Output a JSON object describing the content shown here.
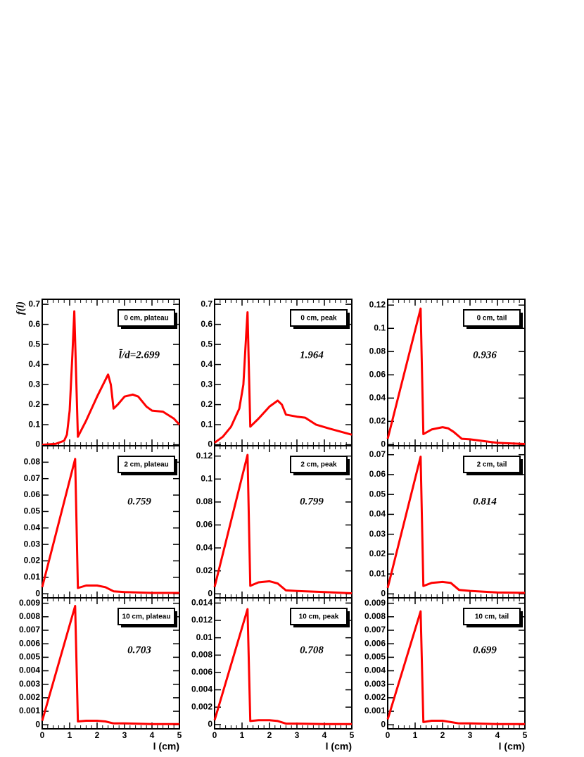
{
  "chart_data": [
    {
      "type": "line",
      "label": "0 cm, plateau",
      "annotation": "l̄/d=2.699",
      "ylabel": "f(l)",
      "color": "#ff0000",
      "x": [
        0,
        0.5,
        0.8,
        0.9,
        1.0,
        1.1,
        1.17,
        1.3,
        1.6,
        2.0,
        2.4,
        2.5,
        2.6,
        2.75,
        3.0,
        3.3,
        3.5,
        3.8,
        4.0,
        4.4,
        4.8,
        5.0
      ],
      "values": [
        0,
        0.005,
        0.02,
        0.05,
        0.17,
        0.45,
        0.665,
        0.04,
        0.12,
        0.24,
        0.35,
        0.3,
        0.18,
        0.2,
        0.24,
        0.25,
        0.24,
        0.19,
        0.17,
        0.165,
        0.13,
        0.1
      ],
      "xlim": [
        0,
        5
      ],
      "xticks": [
        0,
        1,
        2,
        3,
        4,
        5
      ],
      "ylim": [
        -0.005,
        0.725
      ],
      "yticks": [
        0,
        0.1,
        0.2,
        0.3,
        0.4,
        0.5,
        0.6,
        0.7
      ]
    },
    {
      "type": "line",
      "label": "0 cm, peak",
      "annotation": "1.964",
      "color": "#ff0000",
      "x": [
        0,
        0.3,
        0.6,
        0.9,
        1.05,
        1.15,
        1.2,
        1.3,
        1.6,
        2.0,
        2.3,
        2.45,
        2.6,
        3.0,
        3.3,
        3.7,
        4.2,
        5.0
      ],
      "values": [
        0.01,
        0.04,
        0.09,
        0.18,
        0.3,
        0.55,
        0.66,
        0.09,
        0.13,
        0.19,
        0.22,
        0.2,
        0.15,
        0.14,
        0.135,
        0.1,
        0.08,
        0.05
      ],
      "xlim": [
        0,
        5
      ],
      "xticks": [
        0,
        1,
        2,
        3,
        4,
        5
      ],
      "ylim": [
        -0.005,
        0.725
      ],
      "yticks": [
        0,
        0.1,
        0.2,
        0.3,
        0.4,
        0.5,
        0.6,
        0.7
      ]
    },
    {
      "type": "line",
      "label": "0 cm, tail",
      "annotation": "0.936",
      "color": "#ff0000",
      "x": [
        0,
        1.2,
        1.3,
        1.6,
        2.0,
        2.2,
        2.4,
        2.7,
        3.0,
        3.5,
        4.0,
        5.0
      ],
      "values": [
        0.005,
        0.117,
        0.009,
        0.013,
        0.015,
        0.014,
        0.011,
        0.005,
        0.0045,
        0.003,
        0.0015,
        0.0005
      ],
      "xlim": [
        0,
        5
      ],
      "xticks": [
        0,
        1,
        2,
        3,
        4,
        5
      ],
      "ylim": [
        -0.001,
        0.125
      ],
      "yticks": [
        0,
        0.02,
        0.04,
        0.06,
        0.08,
        0.1,
        0.12
      ]
    },
    {
      "type": "line",
      "label": "2 cm, plateau",
      "annotation": "0.759",
      "color": "#ff0000",
      "x": [
        0,
        1.2,
        1.3,
        1.6,
        2.0,
        2.3,
        2.6,
        3.0,
        4.0,
        5.0
      ],
      "values": [
        0.004,
        0.082,
        0.0035,
        0.005,
        0.005,
        0.004,
        0.0015,
        0.001,
        0.0005,
        0.0005
      ],
      "xlim": [
        0,
        5
      ],
      "xticks": [
        0,
        1,
        2,
        3,
        4,
        5
      ],
      "ylim": [
        -0.0025,
        0.09
      ],
      "yticks": [
        0,
        0.01,
        0.02,
        0.03,
        0.04,
        0.05,
        0.06,
        0.07,
        0.08
      ]
    },
    {
      "type": "line",
      "label": "2 cm, peak",
      "annotation": "0.799",
      "color": "#ff0000",
      "x": [
        0,
        1.2,
        1.3,
        1.6,
        2.0,
        2.3,
        2.6,
        3.0,
        4.0,
        5.0
      ],
      "values": [
        0.006,
        0.121,
        0.007,
        0.01,
        0.011,
        0.009,
        0.003,
        0.0025,
        0.0015,
        0.0005
      ],
      "xlim": [
        0,
        5
      ],
      "xticks": [
        0,
        1,
        2,
        3,
        4,
        5
      ],
      "ylim": [
        -0.0035,
        0.129
      ],
      "yticks": [
        0,
        0.02,
        0.04,
        0.06,
        0.08,
        0.1,
        0.12
      ]
    },
    {
      "type": "line",
      "label": "2 cm, tail",
      "annotation": "0.814",
      "color": "#ff0000",
      "x": [
        0,
        1.2,
        1.3,
        1.6,
        2.0,
        2.3,
        2.6,
        3.0,
        4.0,
        5.0
      ],
      "values": [
        0.003,
        0.069,
        0.004,
        0.0055,
        0.006,
        0.0055,
        0.002,
        0.0015,
        0.0007,
        0.0005
      ],
      "xlim": [
        0,
        5
      ],
      "xticks": [
        0,
        1,
        2,
        3,
        4,
        5
      ],
      "ylim": [
        -0.002,
        0.0745
      ],
      "yticks": [
        0,
        0.01,
        0.02,
        0.03,
        0.04,
        0.05,
        0.06,
        0.07
      ]
    },
    {
      "type": "line",
      "label": "10 cm, plateau",
      "annotation": "0.703",
      "xlabel": "l (cm)",
      "color": "#ff0000",
      "x": [
        0,
        1.2,
        1.3,
        1.6,
        2.0,
        2.3,
        2.6,
        3.0,
        4.0,
        5.0
      ],
      "values": [
        0.0003,
        0.0088,
        0.00025,
        0.0003,
        0.0003,
        0.00025,
        0.0001,
        0.0001,
        5e-05,
        5e-05
      ],
      "xlim": [
        0,
        5
      ],
      "xticks": [
        0,
        1,
        2,
        3,
        4,
        5
      ],
      "ylim": [
        -0.0003,
        0.0094
      ],
      "yticks": [
        0,
        0.001,
        0.002,
        0.003,
        0.004,
        0.005,
        0.006,
        0.007,
        0.008,
        0.009
      ]
    },
    {
      "type": "line",
      "label": "10 cm, peak",
      "annotation": "0.708",
      "xlabel": "l (cm)",
      "color": "#ff0000",
      "x": [
        0,
        1.2,
        1.3,
        1.6,
        2.0,
        2.3,
        2.6,
        3.0,
        4.0,
        5.0
      ],
      "values": [
        0.0005,
        0.0133,
        0.0004,
        0.0005,
        0.0005,
        0.0004,
        0.0001,
        0.0001,
        5e-05,
        5e-05
      ],
      "xlim": [
        0,
        5
      ],
      "xticks": [
        0,
        1,
        2,
        3,
        4,
        5
      ],
      "ylim": [
        -0.0005,
        0.0146
      ],
      "yticks": [
        0,
        0.002,
        0.004,
        0.006,
        0.008,
        0.01,
        0.012,
        0.014
      ]
    },
    {
      "type": "line",
      "label": "10 cm, tail",
      "annotation": "0.699",
      "xlabel": "l (cm)",
      "color": "#ff0000",
      "x": [
        0,
        1.2,
        1.3,
        1.6,
        2.0,
        2.3,
        2.6,
        3.0,
        4.0,
        5.0
      ],
      "values": [
        0.0004,
        0.0084,
        0.0002,
        0.0003,
        0.0003,
        0.0002,
        0.0001,
        0.0001,
        5e-05,
        5e-05
      ],
      "xlim": [
        0,
        5
      ],
      "xticks": [
        0,
        1,
        2,
        3,
        4,
        5
      ],
      "ylim": [
        -0.0003,
        0.0094
      ],
      "yticks": [
        0,
        0.001,
        0.002,
        0.003,
        0.004,
        0.005,
        0.006,
        0.007,
        0.008,
        0.009
      ]
    }
  ]
}
